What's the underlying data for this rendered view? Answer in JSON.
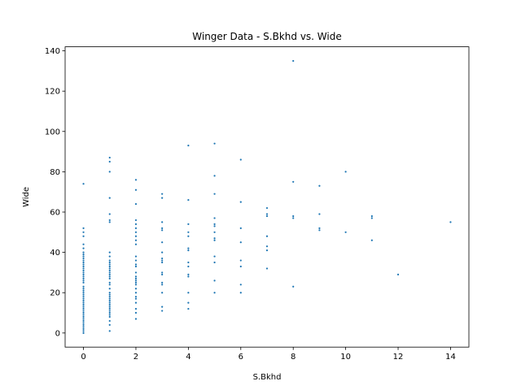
{
  "chart_data": {
    "type": "scatter",
    "title": "Winger Data - S.Bkhd vs. Wide",
    "xlabel": "S.Bkhd",
    "ylabel": "Wide",
    "xlim": [
      -0.7,
      14.7
    ],
    "ylim": [
      -7,
      142
    ],
    "xticks": [
      0,
      2,
      4,
      6,
      8,
      10,
      12,
      14
    ],
    "yticks": [
      0,
      20,
      40,
      60,
      80,
      100,
      120,
      140
    ],
    "grid": false,
    "marker_color": "#1f77b4",
    "series": [
      {
        "points": [
          [
            0,
            74
          ],
          [
            0,
            52
          ],
          [
            0,
            50
          ],
          [
            0,
            48
          ],
          [
            0,
            44
          ],
          [
            0,
            42
          ],
          [
            0,
            40
          ],
          [
            0,
            39
          ],
          [
            0,
            38
          ],
          [
            0,
            37
          ],
          [
            0,
            36
          ],
          [
            0,
            35
          ],
          [
            0,
            34
          ],
          [
            0,
            33
          ],
          [
            0,
            32
          ],
          [
            0,
            31
          ],
          [
            0,
            30
          ],
          [
            0,
            29
          ],
          [
            0,
            28
          ],
          [
            0,
            27
          ],
          [
            0,
            26
          ],
          [
            0,
            25
          ],
          [
            0,
            23
          ],
          [
            0,
            22
          ],
          [
            0,
            21
          ],
          [
            0,
            20
          ],
          [
            0,
            19
          ],
          [
            0,
            18
          ],
          [
            0,
            17
          ],
          [
            0,
            16
          ],
          [
            0,
            15
          ],
          [
            0,
            14
          ],
          [
            0,
            13
          ],
          [
            0,
            12
          ],
          [
            0,
            11
          ],
          [
            0,
            10
          ],
          [
            0,
            9
          ],
          [
            0,
            8
          ],
          [
            0,
            7
          ],
          [
            0,
            6
          ],
          [
            0,
            5
          ],
          [
            0,
            4
          ],
          [
            0,
            3
          ],
          [
            0,
            2
          ],
          [
            0,
            1
          ],
          [
            0,
            0
          ],
          [
            1,
            87
          ],
          [
            1,
            85
          ],
          [
            1,
            80
          ],
          [
            1,
            67
          ],
          [
            1,
            59
          ],
          [
            1,
            56
          ],
          [
            1,
            55
          ],
          [
            1,
            40
          ],
          [
            1,
            38
          ],
          [
            1,
            36
          ],
          [
            1,
            35
          ],
          [
            1,
            34
          ],
          [
            1,
            33
          ],
          [
            1,
            32
          ],
          [
            1,
            31
          ],
          [
            1,
            30
          ],
          [
            1,
            29
          ],
          [
            1,
            28
          ],
          [
            1,
            27
          ],
          [
            1,
            25
          ],
          [
            1,
            24
          ],
          [
            1,
            22
          ],
          [
            1,
            20
          ],
          [
            1,
            19
          ],
          [
            1,
            18
          ],
          [
            1,
            17
          ],
          [
            1,
            16
          ],
          [
            1,
            15
          ],
          [
            1,
            14
          ],
          [
            1,
            13
          ],
          [
            1,
            12
          ],
          [
            1,
            11
          ],
          [
            1,
            10
          ],
          [
            1,
            9
          ],
          [
            1,
            8
          ],
          [
            1,
            6
          ],
          [
            1,
            4
          ],
          [
            1,
            1
          ],
          [
            2,
            76
          ],
          [
            2,
            71
          ],
          [
            2,
            64
          ],
          [
            2,
            56
          ],
          [
            2,
            54
          ],
          [
            2,
            52
          ],
          [
            2,
            50
          ],
          [
            2,
            48
          ],
          [
            2,
            46
          ],
          [
            2,
            44
          ],
          [
            2,
            38
          ],
          [
            2,
            36
          ],
          [
            2,
            34
          ],
          [
            2,
            33
          ],
          [
            2,
            30
          ],
          [
            2,
            28
          ],
          [
            2,
            27
          ],
          [
            2,
            26
          ],
          [
            2,
            25
          ],
          [
            2,
            24
          ],
          [
            2,
            22
          ],
          [
            2,
            20
          ],
          [
            2,
            18
          ],
          [
            2,
            17
          ],
          [
            2,
            15
          ],
          [
            2,
            12
          ],
          [
            2,
            10
          ],
          [
            2,
            7
          ],
          [
            3,
            69
          ],
          [
            3,
            67
          ],
          [
            3,
            55
          ],
          [
            3,
            52
          ],
          [
            3,
            51
          ],
          [
            3,
            45
          ],
          [
            3,
            40
          ],
          [
            3,
            37
          ],
          [
            3,
            36
          ],
          [
            3,
            35
          ],
          [
            3,
            30
          ],
          [
            3,
            29
          ],
          [
            3,
            25
          ],
          [
            3,
            24
          ],
          [
            3,
            20
          ],
          [
            3,
            13
          ],
          [
            3,
            11
          ],
          [
            4,
            93
          ],
          [
            4,
            66
          ],
          [
            4,
            54
          ],
          [
            4,
            50
          ],
          [
            4,
            48
          ],
          [
            4,
            42
          ],
          [
            4,
            41
          ],
          [
            4,
            35
          ],
          [
            4,
            33
          ],
          [
            4,
            29
          ],
          [
            4,
            28
          ],
          [
            4,
            20
          ],
          [
            4,
            15
          ],
          [
            4,
            12
          ],
          [
            5,
            94
          ],
          [
            5,
            78
          ],
          [
            5,
            69
          ],
          [
            5,
            57
          ],
          [
            5,
            54
          ],
          [
            5,
            53
          ],
          [
            5,
            50
          ],
          [
            5,
            47
          ],
          [
            5,
            46
          ],
          [
            5,
            38
          ],
          [
            5,
            35
          ],
          [
            5,
            26
          ],
          [
            5,
            20
          ],
          [
            6,
            86
          ],
          [
            6,
            65
          ],
          [
            6,
            52
          ],
          [
            6,
            45
          ],
          [
            6,
            36
          ],
          [
            6,
            33
          ],
          [
            6,
            24
          ],
          [
            6,
            20
          ],
          [
            7,
            62
          ],
          [
            7,
            59
          ],
          [
            7,
            58
          ],
          [
            7,
            48
          ],
          [
            7,
            43
          ],
          [
            7,
            41
          ],
          [
            7,
            32
          ],
          [
            8,
            135
          ],
          [
            8,
            75
          ],
          [
            8,
            58
          ],
          [
            8,
            57
          ],
          [
            8,
            23
          ],
          [
            9,
            73
          ],
          [
            9,
            59
          ],
          [
            9,
            52
          ],
          [
            9,
            51
          ],
          [
            10,
            80
          ],
          [
            10,
            50
          ],
          [
            11,
            58
          ],
          [
            11,
            57
          ],
          [
            11,
            46
          ],
          [
            12,
            29
          ],
          [
            14,
            55
          ]
        ]
      }
    ]
  }
}
